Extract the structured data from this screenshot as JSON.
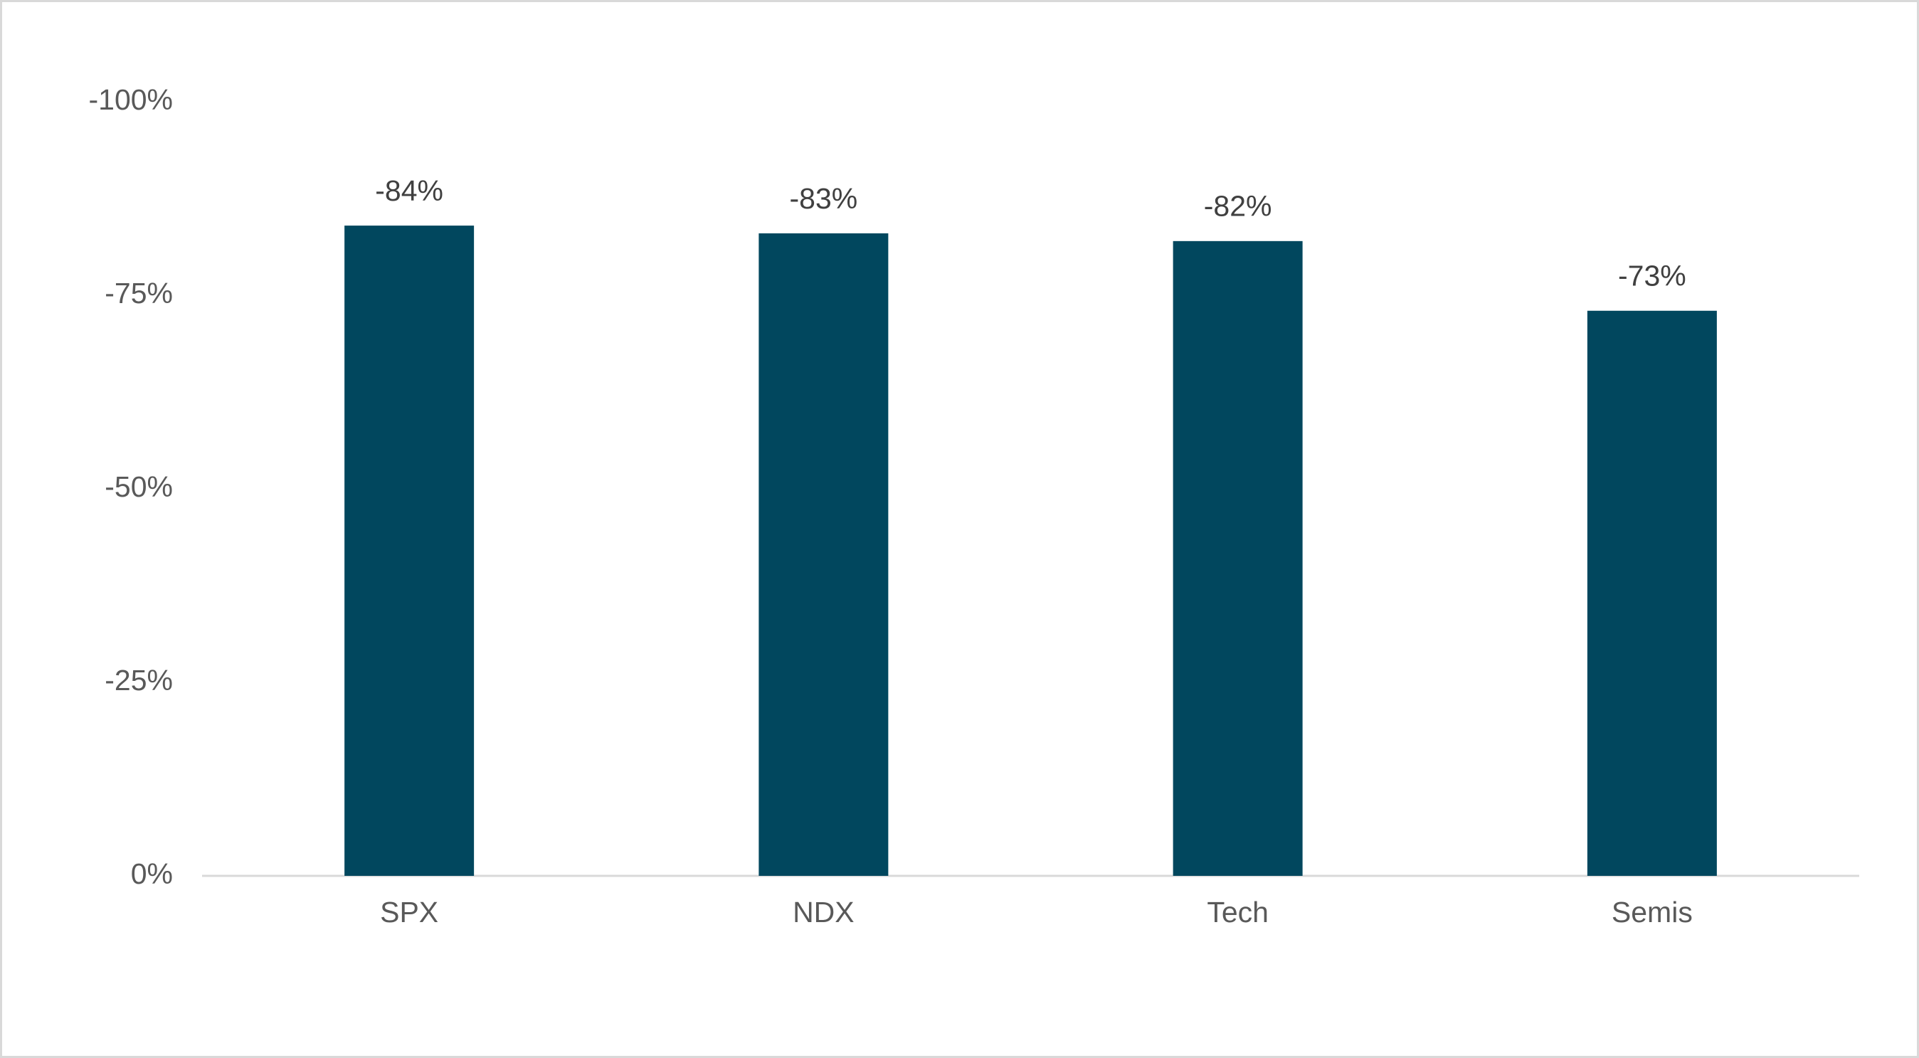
{
  "chart_data": {
    "type": "bar",
    "categories": [
      "SPX",
      "NDX",
      "Tech",
      "Semis"
    ],
    "values": [
      -84,
      -83,
      -82,
      -73
    ],
    "value_labels": [
      "-84%",
      "-83%",
      "-82%",
      "-73%"
    ],
    "color": "#01475e",
    "ylim": [
      0,
      -100
    ],
    "yticks": [
      {
        "value": 0,
        "label": "0%"
      },
      {
        "value": -25,
        "label": "-25%"
      },
      {
        "value": -50,
        "label": "-50%"
      },
      {
        "value": -75,
        "label": "-75%"
      },
      {
        "value": -100,
        "label": "-100%"
      }
    ],
    "grid": false
  }
}
